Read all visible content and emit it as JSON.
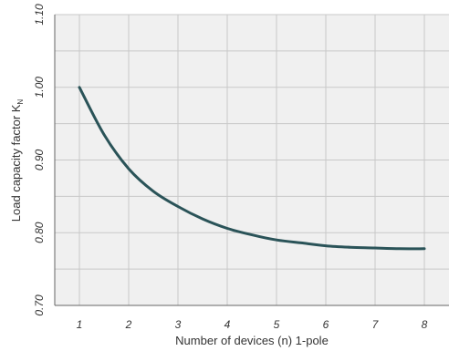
{
  "chart_data": {
    "type": "line",
    "xlabel": "Number of devices (n) 1-pole",
    "ylabel_main": "Load capacity factor K",
    "ylabel_sub": "N",
    "xlim": [
      0.5,
      8.5
    ],
    "ylim": [
      0.7,
      1.1
    ],
    "x_ticks": [
      1,
      2,
      3,
      4,
      5,
      6,
      7,
      8
    ],
    "y_ticks": [
      "0.70",
      "0.80",
      "0.90",
      "1.00",
      "1.10"
    ],
    "grid": true,
    "series": [
      {
        "color": "#2a5358",
        "x": [
          1,
          1.5,
          2,
          2.5,
          3,
          3.5,
          4,
          4.5,
          5,
          5.5,
          6,
          6.5,
          7,
          7.5,
          8
        ],
        "y": [
          1.0,
          0.935,
          0.888,
          0.857,
          0.836,
          0.819,
          0.806,
          0.797,
          0.79,
          0.786,
          0.782,
          0.78,
          0.779,
          0.778,
          0.778
        ]
      }
    ]
  },
  "colors": {
    "plot_bg": "#f0f0f0",
    "grid": "#c8c8c8",
    "axis": "#666666"
  }
}
